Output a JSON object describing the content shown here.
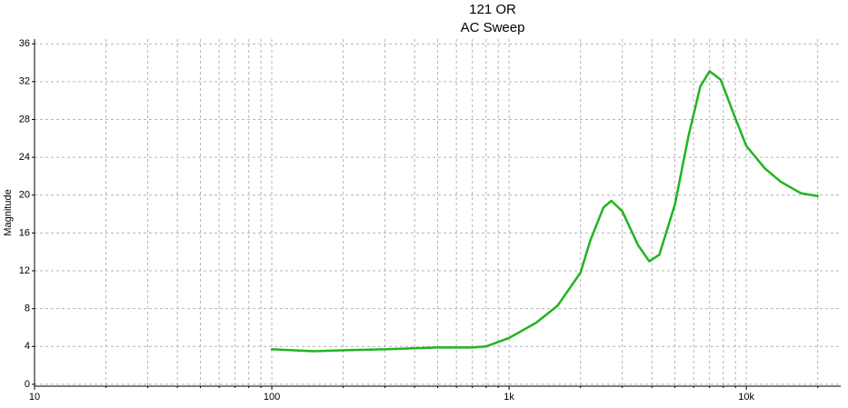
{
  "chart_data": {
    "type": "line",
    "title": "121 OR",
    "subtitle": "AC Sweep",
    "ylabel": "Magnitude",
    "xscale": "log",
    "x": [
      100,
      150,
      200,
      300,
      500,
      700,
      800,
      1000,
      1300,
      1600,
      2000,
      2200,
      2500,
      2700,
      3000,
      3500,
      3900,
      4300,
      5000,
      5700,
      6400,
      7000,
      7800,
      9000,
      10000,
      12000,
      14000,
      17000,
      20000
    ],
    "values": [
      3.7,
      3.5,
      3.6,
      3.7,
      3.9,
      3.9,
      4.0,
      4.9,
      6.5,
      8.3,
      11.8,
      15.2,
      18.7,
      19.4,
      18.3,
      14.7,
      13.0,
      13.7,
      19.0,
      26.2,
      31.5,
      33.1,
      32.2,
      28.1,
      25.2,
      22.8,
      21.4,
      20.2,
      19.9
    ],
    "color": "#1fb51f",
    "xlim": [
      10,
      25000
    ],
    "xticks": [
      10,
      100,
      {
        "value": 1000,
        "label": "1k"
      },
      {
        "value": 10000,
        "label": "10k"
      }
    ],
    "xminorticks": [
      20,
      30,
      40,
      50,
      60,
      70,
      80,
      90,
      200,
      300,
      400,
      500,
      600,
      700,
      800,
      900,
      2000,
      3000,
      4000,
      5000,
      6000,
      7000,
      8000,
      9000,
      20000
    ],
    "ylim": [
      -0.2,
      36.5
    ],
    "yticks": [
      0,
      4,
      8,
      12,
      16,
      20,
      24,
      28,
      32,
      36
    ],
    "grid": true
  }
}
